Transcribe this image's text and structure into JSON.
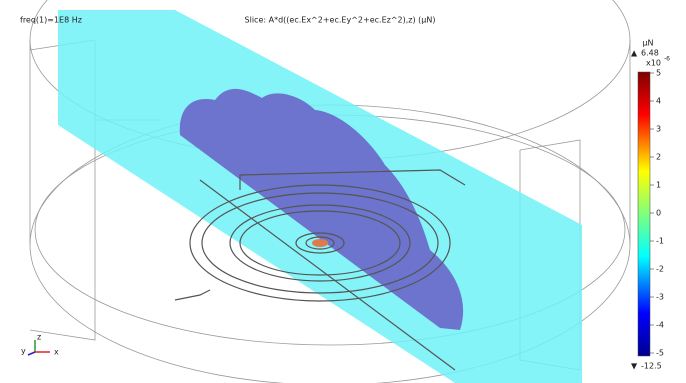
{
  "header": {
    "frequency": "freq(1)=1E8 Hz",
    "expression": "Slice: A*d((ec.Ex^2+ec.Ey^2+ec.Ez^2),z) (μN)"
  },
  "colorbar": {
    "unit": "μN",
    "max": 6.48,
    "multiplier": "x10",
    "exponent": "-6",
    "ticks": [
      5,
      4,
      3,
      2,
      1,
      0,
      -1,
      -2,
      -3,
      -4,
      -5
    ],
    "min": -12.5
  },
  "axes": {
    "y": "y",
    "z": "z",
    "x": "x"
  }
}
